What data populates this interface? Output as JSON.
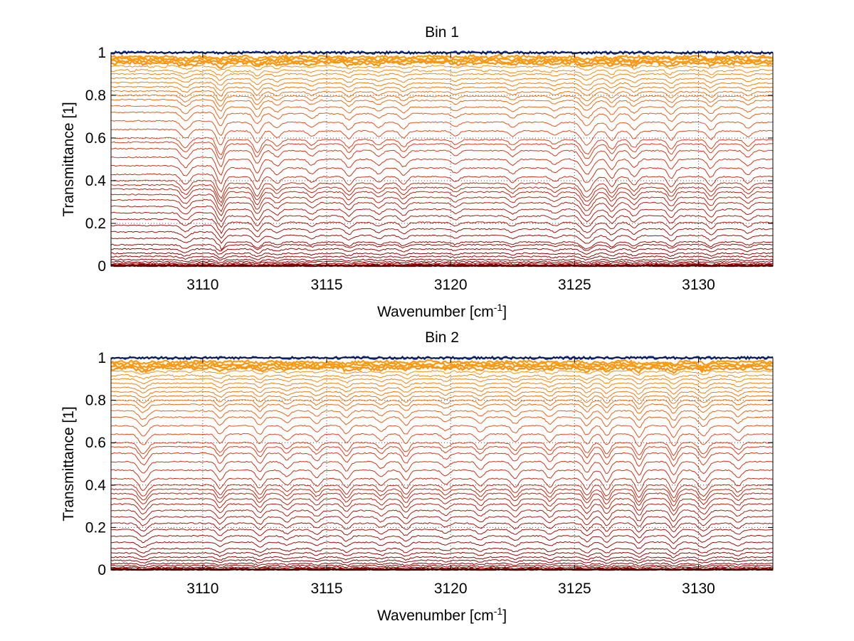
{
  "chart_data": [
    {
      "type": "line",
      "title": "Bin 1",
      "xlabel": "Wavenumber [cm",
      "xlabel_sup": "-1",
      "xlabel_end": "]",
      "ylabel": "Transmittance [1]",
      "xlim": [
        3106.3,
        3133.0
      ],
      "ylim": [
        0,
        1
      ],
      "xticks": [
        3110,
        3115,
        3120,
        3125,
        3130
      ],
      "yticks": [
        0,
        0.2,
        0.4,
        0.6,
        0.8,
        1
      ],
      "ytick_labels": [
        "0",
        "0.2",
        "0.4",
        "0.6",
        "0.8",
        "1"
      ],
      "grid": true,
      "series_note": "family of transmittance spectra from ~0 to ~1, colored dark red (low) to orange (high) with blue at top",
      "levels": [
        0.0,
        0.005,
        0.012,
        0.02,
        0.03,
        0.045,
        0.06,
        0.08,
        0.1,
        0.13,
        0.16,
        0.19,
        0.22,
        0.25,
        0.28,
        0.31,
        0.335,
        0.36,
        0.38,
        0.4,
        0.43,
        0.47,
        0.51,
        0.55,
        0.58,
        0.6,
        0.64,
        0.68,
        0.72,
        0.75,
        0.78,
        0.8,
        0.82,
        0.84,
        0.86,
        0.88,
        0.9,
        0.92,
        0.94,
        0.955,
        0.965,
        0.975,
        0.985,
        1.0
      ],
      "absorption_lines": [
        {
          "x": 3109.3,
          "depth": 0.6,
          "width": 0.25
        },
        {
          "x": 3110.7,
          "depth": 1.0,
          "width": 0.2,
          "step": true
        },
        {
          "x": 3112.2,
          "depth": 0.8,
          "width": 0.2
        },
        {
          "x": 3113.0,
          "depth": 0.4,
          "width": 0.2
        },
        {
          "x": 3114.4,
          "depth": 0.35,
          "width": 0.2
        },
        {
          "x": 3115.9,
          "depth": 0.5,
          "width": 0.2
        },
        {
          "x": 3117.1,
          "depth": 0.35,
          "width": 0.2
        },
        {
          "x": 3118.1,
          "depth": 0.45,
          "width": 0.2
        },
        {
          "x": 3120.2,
          "depth": 0.3,
          "width": 0.2
        },
        {
          "x": 3122.5,
          "depth": 0.35,
          "width": 0.2
        },
        {
          "x": 3124.2,
          "depth": 0.3,
          "width": 0.2
        },
        {
          "x": 3125.5,
          "depth": 0.9,
          "width": 0.3
        },
        {
          "x": 3126.5,
          "depth": 0.6,
          "width": 0.2
        },
        {
          "x": 3127.4,
          "depth": 0.5,
          "width": 0.2
        },
        {
          "x": 3128.9,
          "depth": 0.6,
          "width": 0.2
        },
        {
          "x": 3130.5,
          "depth": 0.55,
          "width": 0.2
        },
        {
          "x": 3132.0,
          "depth": 0.4,
          "width": 0.2
        }
      ]
    },
    {
      "type": "line",
      "title": "Bin 2",
      "xlabel": "Wavenumber [cm",
      "xlabel_sup": "-1",
      "xlabel_end": "]",
      "ylabel": "Transmittance [1]",
      "xlim": [
        3106.3,
        3133.0
      ],
      "ylim": [
        0,
        1
      ],
      "xticks": [
        3110,
        3115,
        3120,
        3125,
        3130
      ],
      "yticks": [
        0,
        0.2,
        0.4,
        0.6,
        0.8,
        1
      ],
      "ytick_labels": [
        "0",
        "0.2",
        "0.4",
        "0.6",
        "0.8",
        "1"
      ],
      "grid": true,
      "series_note": "family of transmittance spectra from ~0 to ~1, colored dark red (low) to orange (high) with blue at top",
      "levels": [
        0.0,
        0.005,
        0.012,
        0.02,
        0.03,
        0.045,
        0.06,
        0.08,
        0.1,
        0.13,
        0.16,
        0.19,
        0.22,
        0.25,
        0.28,
        0.31,
        0.335,
        0.36,
        0.38,
        0.4,
        0.43,
        0.47,
        0.51,
        0.55,
        0.58,
        0.6,
        0.64,
        0.68,
        0.72,
        0.75,
        0.78,
        0.8,
        0.82,
        0.84,
        0.86,
        0.88,
        0.9,
        0.92,
        0.94,
        0.955,
        0.965,
        0.975,
        0.985,
        1.0
      ],
      "absorption_lines": [
        {
          "x": 3107.6,
          "depth": 0.7,
          "width": 0.25
        },
        {
          "x": 3110.7,
          "depth": 0.6,
          "width": 0.2
        },
        {
          "x": 3112.3,
          "depth": 0.6,
          "width": 0.2
        },
        {
          "x": 3113.4,
          "depth": 0.4,
          "width": 0.2
        },
        {
          "x": 3114.6,
          "depth": 0.45,
          "width": 0.2
        },
        {
          "x": 3115.8,
          "depth": 0.55,
          "width": 0.2
        },
        {
          "x": 3117.2,
          "depth": 0.4,
          "width": 0.2
        },
        {
          "x": 3118.2,
          "depth": 0.6,
          "width": 0.2
        },
        {
          "x": 3119.8,
          "depth": 0.35,
          "width": 0.2
        },
        {
          "x": 3121.2,
          "depth": 0.45,
          "width": 0.2
        },
        {
          "x": 3122.6,
          "depth": 0.5,
          "width": 0.2
        },
        {
          "x": 3124.0,
          "depth": 0.5,
          "width": 0.2
        },
        {
          "x": 3125.5,
          "depth": 0.65,
          "width": 0.2
        },
        {
          "x": 3126.3,
          "depth": 0.7,
          "width": 0.2
        },
        {
          "x": 3127.6,
          "depth": 0.8,
          "width": 0.2
        },
        {
          "x": 3129.0,
          "depth": 0.8,
          "width": 0.2
        },
        {
          "x": 3130.2,
          "depth": 0.7,
          "width": 0.25
        },
        {
          "x": 3131.6,
          "depth": 0.45,
          "width": 0.2
        }
      ]
    }
  ],
  "colors": {
    "low": "#8b0000",
    "mid": "#e0401a",
    "high": "#ff9f10",
    "top": "#0a2a90",
    "grid": "#555555"
  }
}
